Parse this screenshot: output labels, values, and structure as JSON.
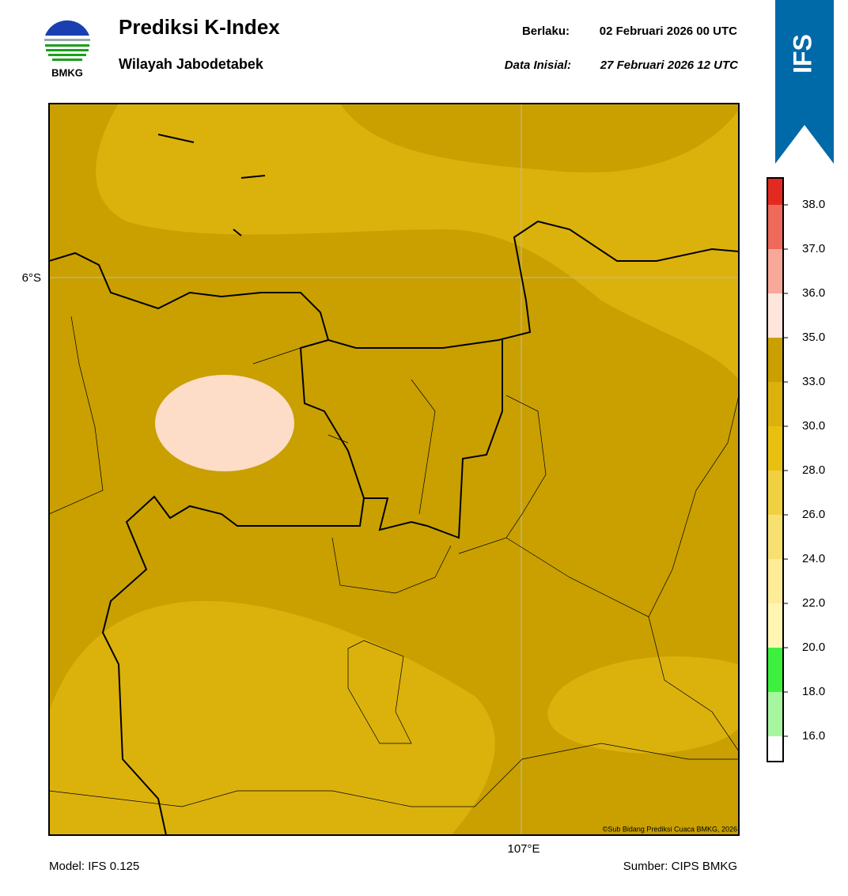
{
  "header": {
    "logo_text": "BMKG",
    "title": "Prediksi K-Index",
    "subtitle": "Wilayah Jabodetabek",
    "valid_label": "Berlaku:",
    "valid_time": "02 Februari 2026 00 UTC",
    "init_label": "Data Inisial:",
    "init_time": "27 Februari 2026 12 UTC",
    "model_badge": "IFS"
  },
  "map": {
    "lat_label": "6°S",
    "lon_label": "107°E",
    "credit": "©Sub Bidang Prediksi Cuaca BMKG, 2026"
  },
  "colorbar": {
    "ticks": [
      {
        "value": 16,
        "label": "16.0"
      },
      {
        "value": 18,
        "label": "18.0"
      },
      {
        "value": 20,
        "label": "20.0"
      },
      {
        "value": 22,
        "label": "22.0"
      },
      {
        "value": 24,
        "label": "24.0"
      },
      {
        "value": 26,
        "label": "26.0"
      },
      {
        "value": 28,
        "label": "28.0"
      },
      {
        "value": 30,
        "label": "30.0"
      },
      {
        "value": 33,
        "label": "33.0"
      },
      {
        "value": 35,
        "label": "35.0"
      },
      {
        "value": 36,
        "label": "36.0"
      },
      {
        "value": 37,
        "label": "37.0"
      },
      {
        "value": 38,
        "label": "38.0"
      }
    ],
    "colors": [
      "#ffffff",
      "#a8f5a0",
      "#3ef03e",
      "#fff6b4",
      "#ffec98",
      "#f8e070",
      "#f0d040",
      "#e8c010",
      "#dbb20c",
      "#c9a000",
      "#ffe6dc",
      "#f7a898",
      "#ee6a5a",
      "#e42a20"
    ]
  },
  "footer": {
    "model": "Model: IFS 0.125",
    "source": "Sumber: CIPS BMKG"
  }
}
